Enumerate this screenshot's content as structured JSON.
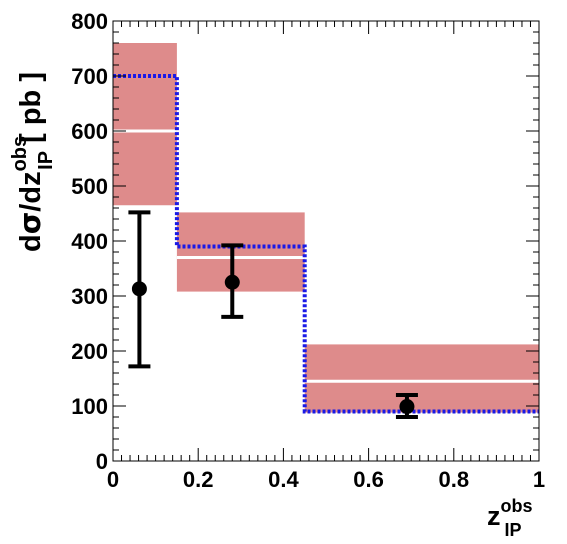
{
  "chart_data": {
    "type": "step",
    "xlabel": {
      "main": "z",
      "sup": "obs",
      "sub": "IP"
    },
    "ylabel": {
      "prefix": "d",
      "sigma": "σ",
      "mid": "/dz",
      "sup": "obs",
      "sub": "IP",
      "suffix": " [ pb ]"
    },
    "xlim": [
      0,
      1
    ],
    "ylim": [
      0,
      800
    ],
    "x_ticks": [
      "0",
      "0.2",
      "0.4",
      "0.6",
      "0.8",
      "1"
    ],
    "y_ticks": [
      "0",
      "100",
      "200",
      "300",
      "400",
      "500",
      "600",
      "700",
      "800"
    ],
    "grid": false,
    "bins": [
      [
        0,
        0.15
      ],
      [
        0.15,
        0.45
      ],
      [
        0.45,
        1.0
      ]
    ],
    "theory_band": [
      {
        "central": 600,
        "low": 465,
        "high": 760
      },
      {
        "central": 370,
        "low": 308,
        "high": 452
      },
      {
        "central": 145,
        "low": 88,
        "high": 212
      }
    ],
    "dotted_line": [
      700,
      390,
      90
    ],
    "data_points": [
      {
        "x": 0.062,
        "y": 313,
        "y_stat_low": 172,
        "y_stat_high": 452,
        "y_sys_low": 172,
        "y_sys_high": 452
      },
      {
        "x": 0.28,
        "y": 325,
        "y_stat_low": 262,
        "y_stat_high": 392,
        "y_sys_low": 262,
        "y_sys_high": 392
      },
      {
        "x": 0.69,
        "y": 99,
        "y_stat_low": 80,
        "y_stat_high": 120,
        "y_sys_low": 80,
        "y_sys_high": 120
      }
    ],
    "colors": {
      "band": "#de8b8b",
      "band_center": "#ffffff",
      "dotted": "#1a1ae6",
      "points": "#000000"
    }
  }
}
